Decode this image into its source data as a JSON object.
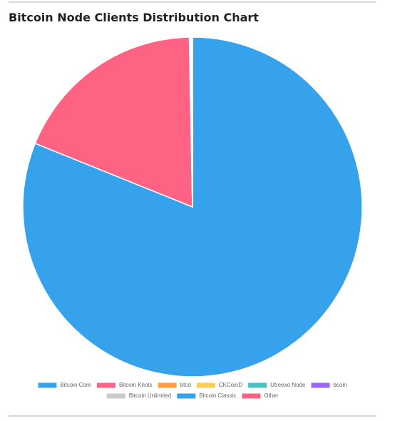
{
  "chart_data": {
    "type": "pie",
    "title": "Bitcoin Node Clients Distribution Chart",
    "categories": [
      "Bitcoin Core",
      "Bitcoin Knots",
      "btcd",
      "CKCoinD",
      "Utreexo Node",
      "bcoin",
      "Bitcoin Unlimited",
      "Bitcoin Classic",
      "Other"
    ],
    "values": [
      81.1,
      18.6,
      0.05,
      0.05,
      0.05,
      0.04,
      0.04,
      0.03,
      0.04
    ],
    "colors": [
      "#36a2eb",
      "#ff6384",
      "#ff9f40",
      "#ffcd56",
      "#4bc0c0",
      "#9966ff",
      "#c9cbcf",
      "#36a2eb",
      "#ff6384"
    ],
    "legend": "bottom"
  }
}
